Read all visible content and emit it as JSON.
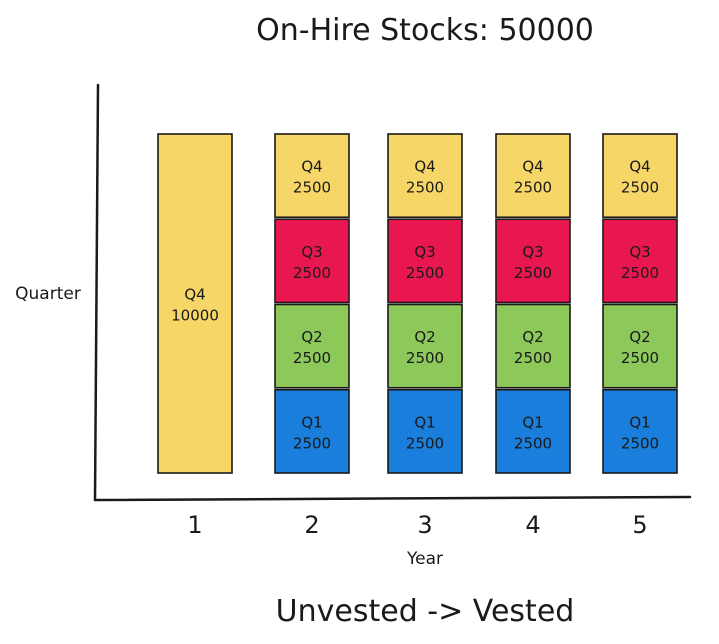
{
  "chart_data": {
    "type": "bar",
    "stacked": true,
    "title": "On-Hire Stocks: 50000",
    "xlabel": "Year",
    "ylabel": "Quarter",
    "caption": "Unvested -> Vested",
    "categories": [
      "1",
      "2",
      "3",
      "4",
      "5"
    ],
    "series": [
      {
        "name": "Q1",
        "color": "#1a7fdc",
        "values": [
          0,
          2500,
          2500,
          2500,
          2500
        ]
      },
      {
        "name": "Q2",
        "color": "#8cc85a",
        "values": [
          0,
          2500,
          2500,
          2500,
          2500
        ]
      },
      {
        "name": "Q3",
        "color": "#e8174f",
        "values": [
          0,
          2500,
          2500,
          2500,
          2500
        ]
      },
      {
        "name": "Q4",
        "color": "#f7d668",
        "values": [
          10000,
          2500,
          2500,
          2500,
          2500
        ]
      }
    ],
    "ylim": [
      0,
      10000
    ],
    "grid": false
  }
}
